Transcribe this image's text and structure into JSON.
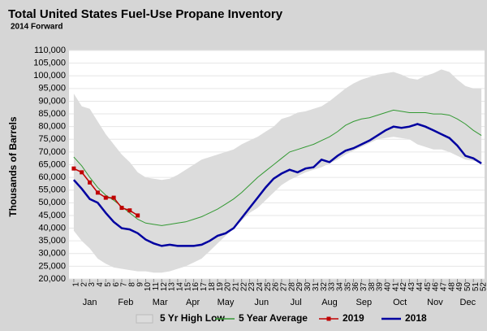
{
  "chart_data": {
    "type": "line",
    "title": "Total United States Fuel-Use Propane Inventory",
    "subtitle": "2014 Forward",
    "y_label": "Thousands of Barrels",
    "x": [
      1,
      2,
      3,
      4,
      5,
      6,
      7,
      8,
      9,
      10,
      11,
      12,
      13,
      14,
      15,
      16,
      17,
      18,
      19,
      20,
      21,
      22,
      23,
      24,
      25,
      26,
      27,
      28,
      29,
      30,
      31,
      32,
      33,
      34,
      35,
      36,
      37,
      38,
      39,
      40,
      41,
      42,
      43,
      44,
      45,
      46,
      47,
      48,
      49,
      50,
      51,
      52
    ],
    "xlim": [
      0.4,
      52.4
    ],
    "months": [
      "Jan",
      "Feb",
      "Mar",
      "Apr",
      "May",
      "Jun",
      "Jul",
      "Aug",
      "Sep",
      "Oct",
      "Nov",
      "Dec"
    ],
    "ylim": [
      20000,
      110000
    ],
    "yticks": [
      {
        "value": 20000,
        "label": "20,000"
      },
      {
        "value": 25000,
        "label": "25,000"
      },
      {
        "value": 30000,
        "label": "30,000"
      },
      {
        "value": 35000,
        "label": "35,000"
      },
      {
        "value": 40000,
        "label": "40,000"
      },
      {
        "value": 45000,
        "label": "45,000"
      },
      {
        "value": 50000,
        "label": "50,000"
      },
      {
        "value": 55000,
        "label": "55,000"
      },
      {
        "value": 60000,
        "label": "60,000"
      },
      {
        "value": 65000,
        "label": "65,000"
      },
      {
        "value": 70000,
        "label": "70,000"
      },
      {
        "value": 75000,
        "label": "75,000"
      },
      {
        "value": 80000,
        "label": "80,000"
      },
      {
        "value": 85000,
        "label": "85,000"
      },
      {
        "value": 90000,
        "label": "90,000"
      },
      {
        "value": 95000,
        "label": "95,000"
      },
      {
        "value": 100000,
        "label": "100,000"
      },
      {
        "value": 105000,
        "label": "105,000"
      },
      {
        "value": 110000,
        "label": "110,000"
      }
    ],
    "legend": "bottom",
    "series": [
      {
        "name": "5 Yr High Low",
        "color": "#dcdcdc",
        "kind": "band",
        "values": [
          93000,
          88000,
          87000,
          82000,
          77000,
          73000,
          69000,
          66000,
          62000,
          60000,
          59500,
          59000,
          59500,
          61000,
          63000,
          65000,
          67000,
          68000,
          69000,
          70000,
          71000,
          73000,
          74500,
          76000,
          78000,
          80000,
          83000,
          84000,
          85500,
          86000,
          87000,
          88000,
          90000,
          92500,
          95000,
          97000,
          98500,
          99500,
          100500,
          101000,
          101500,
          100500,
          99000,
          98500,
          100000,
          101000,
          102500,
          101500,
          98500,
          96000,
          95000,
          95000
        ],
        "low": [
          39000,
          35000,
          32000,
          28000,
          26000,
          24500,
          24000,
          23500,
          23000,
          23000,
          22500,
          22500,
          23000,
          24000,
          25000,
          26500,
          28000,
          31000,
          34000,
          37000,
          40000,
          43000,
          46000,
          48000,
          51000,
          54000,
          57000,
          59000,
          60500,
          62000,
          63000,
          64000,
          65500,
          67000,
          69000,
          70500,
          72000,
          73500,
          75000,
          75500,
          76000,
          75500,
          75000,
          73000,
          72000,
          71000,
          71000,
          70000,
          68500,
          67000,
          66500,
          66000
        ]
      },
      {
        "name": "5 Year Average",
        "color": "#339933",
        "kind": "line",
        "values": [
          68000,
          64500,
          60000,
          56000,
          53000,
          51000,
          48500,
          46000,
          43500,
          42000,
          41500,
          41000,
          41500,
          42000,
          42500,
          43500,
          44500,
          46000,
          47500,
          49500,
          51500,
          54000,
          57000,
          60000,
          62500,
          65000,
          67500,
          70000,
          71000,
          72000,
          73000,
          74500,
          76000,
          78000,
          80500,
          82000,
          83000,
          83500,
          84500,
          85500,
          86500,
          86000,
          85500,
          85500,
          85500,
          85000,
          85000,
          84500,
          83000,
          81000,
          78500,
          76500
        ]
      },
      {
        "name": "2019",
        "color": "#c00000",
        "kind": "marker-line",
        "values": [
          63500,
          62000,
          58000,
          54000,
          52000,
          52000,
          48000,
          47000,
          45000,
          null,
          null,
          null,
          null,
          null,
          null,
          null,
          null,
          null,
          null,
          null,
          null,
          null,
          null,
          null,
          null,
          null,
          null,
          null,
          null,
          null,
          null,
          null,
          null,
          null,
          null,
          null,
          null,
          null,
          null,
          null,
          null,
          null,
          null,
          null,
          null,
          null,
          null,
          null,
          null,
          null,
          null,
          null
        ]
      },
      {
        "name": "2018",
        "color": "#0000a0",
        "kind": "thick-line",
        "values": [
          59000,
          55500,
          51500,
          50000,
          46000,
          42500,
          40000,
          39500,
          38000,
          35500,
          34000,
          33000,
          33500,
          33000,
          33000,
          33000,
          33500,
          35000,
          37000,
          38000,
          40000,
          44000,
          48000,
          52000,
          56000,
          59500,
          61500,
          63000,
          62000,
          63500,
          64000,
          67000,
          66000,
          68500,
          70500,
          71500,
          73000,
          74500,
          76500,
          78500,
          80000,
          79500,
          80000,
          81000,
          80000,
          78500,
          77000,
          75500,
          72500,
          68500,
          67500,
          65500
        ]
      }
    ]
  }
}
